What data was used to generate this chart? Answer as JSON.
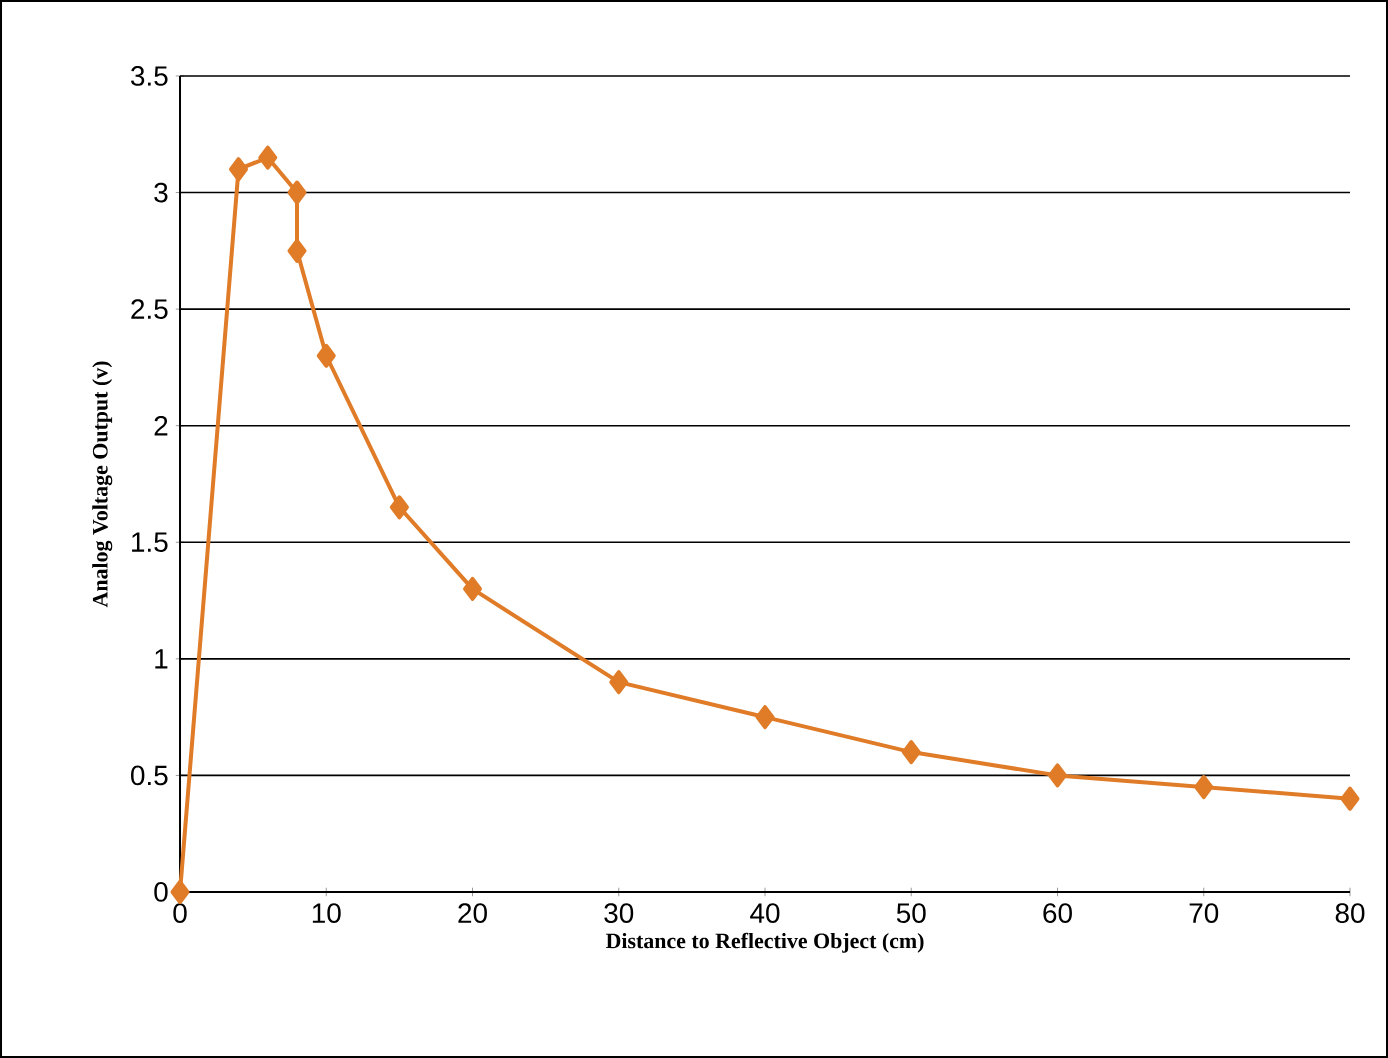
{
  "chart_data": {
    "type": "line",
    "xlabel": "Distance to Reflective Object (cm)",
    "ylabel": "Analog Voltage Output (v)",
    "x": [
      0,
      4,
      6,
      8,
      8,
      10,
      15,
      20,
      30,
      40,
      50,
      60,
      70,
      80
    ],
    "series": [
      {
        "color": "#e07b28",
        "values": [
          0,
          3.1,
          3.15,
          3.0,
          2.75,
          2.3,
          1.65,
          1.3,
          0.9,
          0.75,
          0.6,
          0.5,
          0.45,
          0.4
        ]
      }
    ],
    "xlim": [
      0,
      80
    ],
    "xticks": [
      0,
      10,
      20,
      30,
      40,
      50,
      60,
      70,
      80
    ],
    "ylim": [
      0,
      3.5
    ],
    "yticks": [
      0,
      0.5,
      1,
      1.5,
      2,
      2.5,
      3,
      3.5
    ],
    "grid": "y",
    "marker": "diamond",
    "line_style": "solid"
  }
}
